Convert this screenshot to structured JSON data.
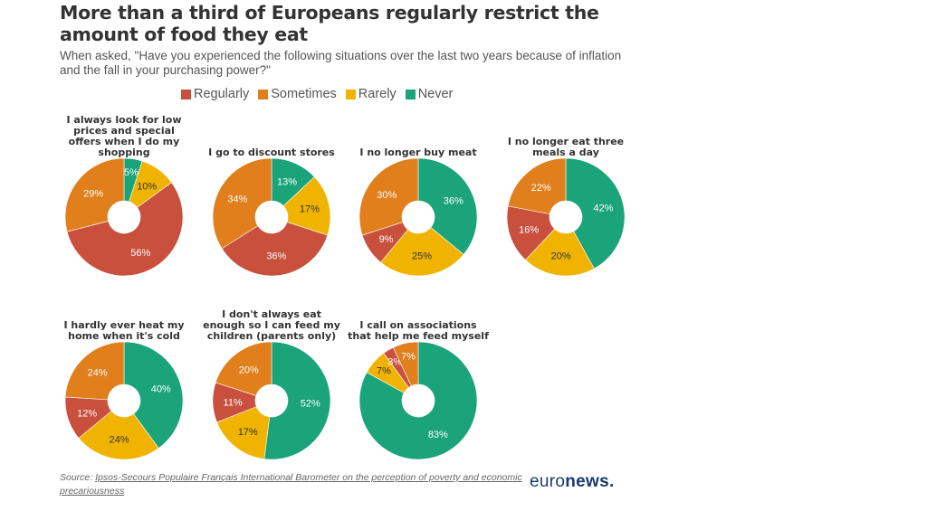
{
  "title": "More than a third of Europeans regularly restrict the amount of food they eat",
  "subtitle": "When asked, \"Have you experienced the following situations over the last two years because of inflation and the fall in your purchasing power?\"",
  "source_prefix": "Source: ",
  "source_link": "Ipsos-Secours Populaire Français International Barometer on the perception of poverty and economic precariousness",
  "logo_light": "euro",
  "logo_bold": "news.",
  "chart_data": {
    "type": "pie",
    "variant": "donut",
    "legend_position": "top",
    "series": [
      {
        "name": "Regularly",
        "color": "#c9503c"
      },
      {
        "name": "Sometimes",
        "color": "#e07f1c"
      },
      {
        "name": "Rarely",
        "color": "#f0b400"
      },
      {
        "name": "Never",
        "color": "#1ba37a"
      }
    ],
    "slice_order_clockwise_from_top": [
      "Never",
      "Rarely",
      "Regularly",
      "Sometimes"
    ],
    "charts": [
      {
        "title": "I always look for low prices and special offers when I do my shopping",
        "values": {
          "Regularly": 56,
          "Sometimes": 29,
          "Rarely": 10,
          "Never": 5
        }
      },
      {
        "title": "I go to discount stores",
        "values": {
          "Regularly": 36,
          "Sometimes": 34,
          "Rarely": 17,
          "Never": 13
        }
      },
      {
        "title": "I no longer buy meat",
        "values": {
          "Regularly": 9,
          "Sometimes": 30,
          "Rarely": 25,
          "Never": 36
        }
      },
      {
        "title": "I no longer eat three meals a day",
        "values": {
          "Regularly": 16,
          "Sometimes": 22,
          "Rarely": 20,
          "Never": 42
        }
      },
      {
        "title": "I hardly ever heat my home when it's cold",
        "values": {
          "Regularly": 12,
          "Sometimes": 24,
          "Rarely": 24,
          "Never": 40
        }
      },
      {
        "title": "I don't always eat enough so I can feed my children (parents only)",
        "values": {
          "Regularly": 11,
          "Sometimes": 20,
          "Rarely": 17,
          "Never": 52
        }
      },
      {
        "title": "I call on associations that help me feed myself",
        "values": {
          "Regularly": 3,
          "Sometimes": 7,
          "Rarely": 7,
          "Never": 83
        }
      }
    ]
  }
}
